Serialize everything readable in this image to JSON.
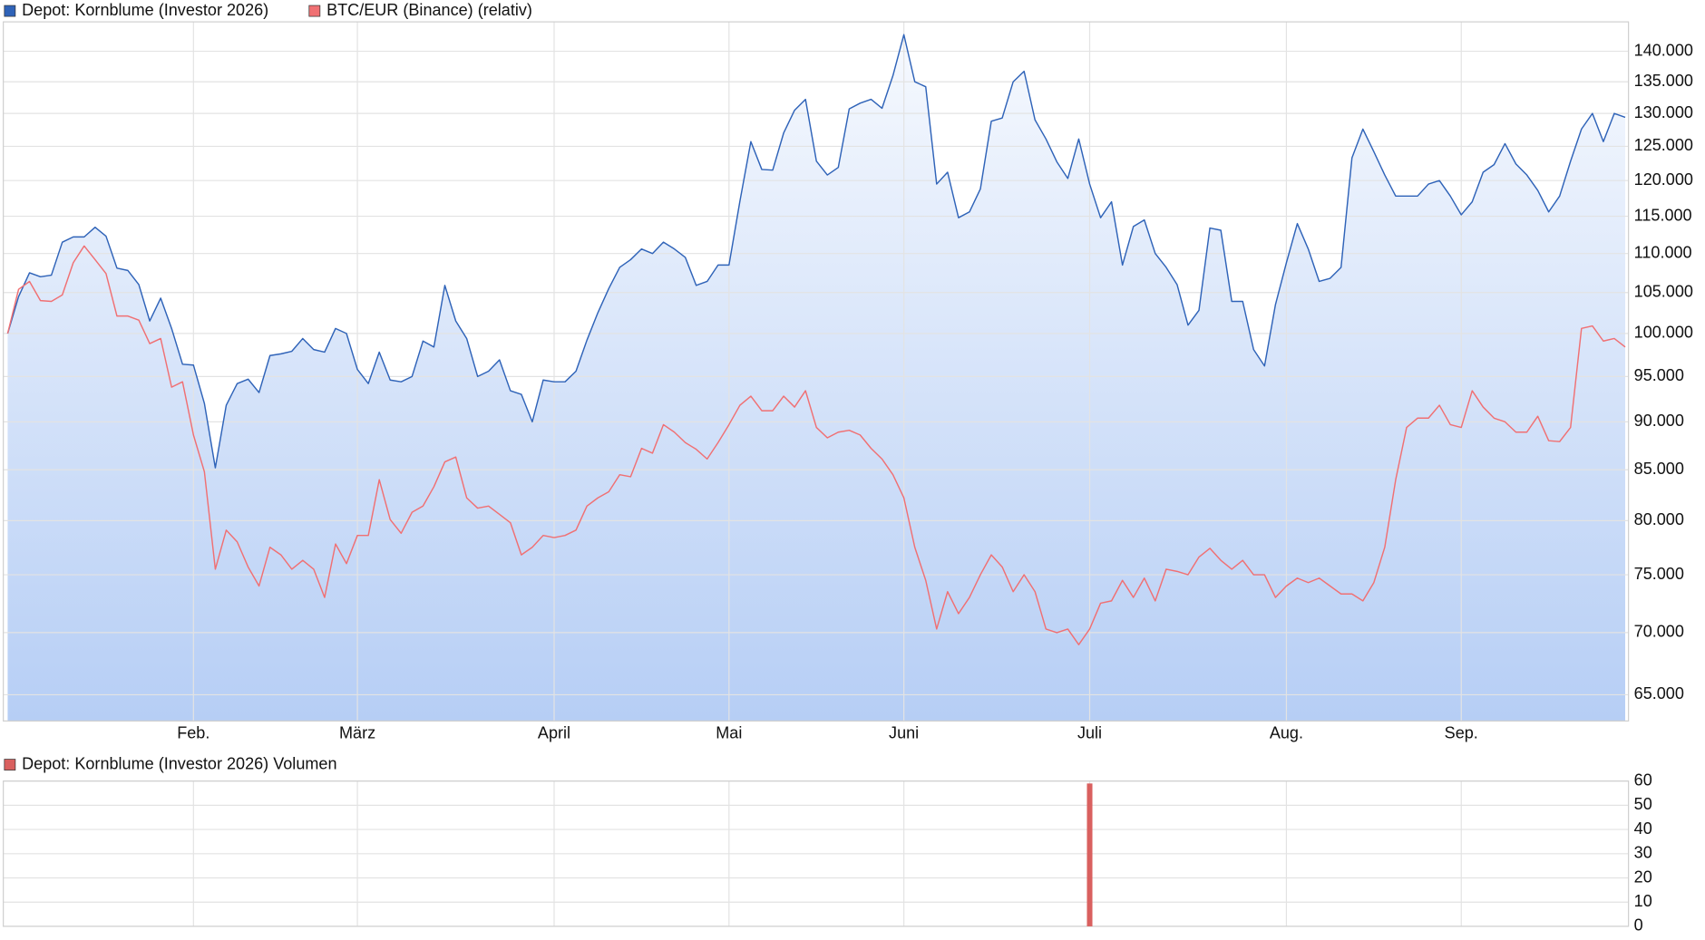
{
  "chart_data": [
    {
      "type": "line",
      "categories": [
        null,
        null,
        null,
        null,
        null,
        null,
        null,
        null,
        null,
        null,
        null,
        null,
        null,
        null,
        null,
        null,
        null,
        "Feb.",
        null,
        null,
        null,
        null,
        null,
        null,
        null,
        null,
        null,
        null,
        null,
        null,
        null,
        null,
        "März",
        null,
        null,
        null,
        null,
        null,
        null,
        null,
        null,
        null,
        null,
        null,
        null,
        null,
        null,
        null,
        null,
        null,
        "April",
        null,
        null,
        null,
        null,
        null,
        null,
        null,
        null,
        null,
        null,
        null,
        null,
        null,
        null,
        null,
        "Mai",
        null,
        null,
        null,
        null,
        null,
        null,
        null,
        null,
        null,
        null,
        null,
        null,
        null,
        null,
        null,
        "Juni",
        null,
        null,
        null,
        null,
        null,
        null,
        null,
        null,
        null,
        null,
        null,
        null,
        null,
        null,
        null,
        null,
        "Juli",
        null,
        null,
        null,
        null,
        null,
        null,
        null,
        null,
        null,
        null,
        null,
        null,
        null,
        null,
        null,
        null,
        null,
        "Aug.",
        null,
        null,
        null,
        null,
        null,
        null,
        null,
        null,
        null,
        null,
        null,
        null,
        null,
        null,
        null,
        "Sep.",
        null,
        null,
        null,
        null,
        null,
        null,
        null,
        null,
        null,
        null,
        null,
        null,
        null,
        null,
        null
      ],
      "series": [
        {
          "name": "Depot: Kornblume (Investor 2026)",
          "color": "#2f63b8",
          "values": [
            100000,
            104500,
            107500,
            107000,
            107200,
            111500,
            112200,
            112200,
            113500,
            112300,
            108100,
            107800,
            106000,
            101500,
            104300,
            100600,
            96400,
            96300,
            92000,
            85200,
            91800,
            94200,
            94700,
            93200,
            97400,
            97600,
            97900,
            99400,
            98100,
            97800,
            100600,
            100000,
            95800,
            94200,
            97800,
            94600,
            94400,
            95000,
            99100,
            98400,
            105900,
            101500,
            99400,
            95000,
            95600,
            96900,
            93400,
            93000,
            90000,
            94600,
            94400,
            94400,
            95600,
            99200,
            102500,
            105500,
            108200,
            109200,
            110600,
            110000,
            111500,
            110600,
            109500,
            105900,
            106400,
            108500,
            108500,
            117100,
            125700,
            121600,
            121500,
            127000,
            130500,
            132200,
            122800,
            120800,
            121900,
            130700,
            131600,
            132200,
            130800,
            136000,
            142800,
            135000,
            134200,
            119500,
            121200,
            114800,
            115600,
            118800,
            128800,
            129300,
            135000,
            136700,
            129000,
            126100,
            122700,
            120300,
            126100,
            119500,
            114800,
            117000,
            108500,
            113600,
            114500,
            110000,
            108200,
            106000,
            101000,
            102800,
            113400,
            113100,
            103900,
            103900,
            98100,
            96200,
            103500,
            108800,
            114000,
            110600,
            106400,
            106800,
            108200,
            123300,
            127600,
            124200,
            120800,
            117800,
            117800,
            117800,
            119500,
            120000,
            117800,
            115200,
            117000,
            121200,
            122300,
            125400,
            122400,
            120800,
            118600,
            115600,
            117800,
            122800,
            127600,
            130000,
            125700,
            130000,
            129400
          ]
        },
        {
          "name": "BTC/EUR (Binance) (relativ)",
          "color": "#f07073",
          "values": [
            100000,
            105400,
            106400,
            104000,
            103900,
            104700,
            108800,
            111000,
            109200,
            107400,
            102100,
            102100,
            101600,
            98800,
            99400,
            93800,
            94400,
            88600,
            84800,
            75500,
            79100,
            78000,
            75700,
            74000,
            77500,
            76800,
            75500,
            76300,
            75500,
            73000,
            77800,
            76000,
            78600,
            78600,
            84000,
            80100,
            78800,
            80800,
            81400,
            83300,
            85800,
            86300,
            82200,
            81200,
            81400,
            80600,
            79800,
            76800,
            77500,
            78600,
            78400,
            78600,
            79100,
            81400,
            82200,
            82800,
            84500,
            84300,
            87200,
            86700,
            89700,
            88900,
            87800,
            87100,
            86100,
            87800,
            89700,
            91800,
            92800,
            91200,
            91200,
            92800,
            91600,
            93400,
            89400,
            88300,
            88900,
            89100,
            88600,
            87200,
            86100,
            84500,
            82200,
            77500,
            74500,
            70300,
            73500,
            71600,
            73000,
            75000,
            76800,
            75700,
            73500,
            75000,
            73500,
            70300,
            70000,
            70300,
            69000,
            70300,
            72500,
            72700,
            74500,
            73000,
            74700,
            72700,
            75500,
            75300,
            75000,
            76600,
            77400,
            76300,
            75500,
            76300,
            75000,
            75000,
            73000,
            74000,
            74700,
            74300,
            74700,
            74000,
            73300,
            73300,
            72700,
            74300,
            77500,
            84000,
            89400,
            90400,
            90400,
            91800,
            89700,
            89400,
            93400,
            91600,
            90400,
            90000,
            88900,
            88900,
            90600,
            88000,
            87900,
            89400,
            100600,
            100900,
            99100,
            99400,
            98400
          ]
        }
      ],
      "ylim": [
        63000,
        145000
      ],
      "log_scale": true,
      "yticks": [
        {
          "value": 65000,
          "label": "65.000"
        },
        {
          "value": 70000,
          "label": "70.000"
        },
        {
          "value": 75000,
          "label": "75.000"
        },
        {
          "value": 80000,
          "label": "80.000"
        },
        {
          "value": 85000,
          "label": "85.000"
        },
        {
          "value": 90000,
          "label": "90.000"
        },
        {
          "value": 95000,
          "label": "95.000"
        },
        {
          "value": 100000,
          "label": "100.000"
        },
        {
          "value": 105000,
          "label": "105.000"
        },
        {
          "value": 110000,
          "label": "110.000"
        },
        {
          "value": 115000,
          "label": "115.000"
        },
        {
          "value": 120000,
          "label": "120.000"
        },
        {
          "value": 125000,
          "label": "125.000"
        },
        {
          "value": 130000,
          "label": "130.000"
        },
        {
          "value": 135000,
          "label": "135.000"
        },
        {
          "value": 140000,
          "label": "140.000"
        }
      ],
      "grid": true
    },
    {
      "type": "bar",
      "series": [
        {
          "name": "Depot: Kornblume (Investor 2026) Volumen",
          "color": "#d9605f",
          "values": [
            0,
            0,
            0,
            0,
            0,
            0,
            0,
            0,
            0,
            0,
            0,
            0,
            0,
            0,
            0,
            0,
            0,
            0,
            0,
            0,
            0,
            0,
            0,
            0,
            0,
            0,
            0,
            0,
            0,
            0,
            0,
            0,
            0,
            0,
            0,
            0,
            0,
            0,
            0,
            0,
            0,
            0,
            0,
            0,
            0,
            0,
            0,
            0,
            0,
            0,
            0,
            0,
            0,
            0,
            0,
            0,
            0,
            0,
            0,
            0,
            0,
            0,
            0,
            0,
            0,
            0,
            0,
            0,
            0,
            0,
            0,
            0,
            0,
            0,
            0,
            0,
            0,
            0,
            0,
            0,
            0,
            0,
            0,
            0,
            0,
            0,
            0,
            0,
            0,
            0,
            0,
            0,
            0,
            0,
            0,
            0,
            0,
            0,
            0,
            59,
            0,
            0,
            0,
            0,
            0,
            0,
            0,
            0,
            0,
            0,
            0,
            0,
            0,
            0,
            0,
            0,
            0,
            0,
            0,
            0,
            0,
            0,
            0,
            0,
            0,
            0,
            0,
            0,
            0,
            0,
            0,
            0,
            0,
            0,
            0,
            0,
            0,
            0,
            0,
            0,
            0,
            0,
            0,
            0,
            0,
            0,
            0,
            0,
            0
          ]
        }
      ],
      "ylim": [
        0,
        60
      ],
      "yticks": [
        0,
        10,
        20,
        30,
        40,
        50,
        60
      ],
      "grid": true
    }
  ]
}
